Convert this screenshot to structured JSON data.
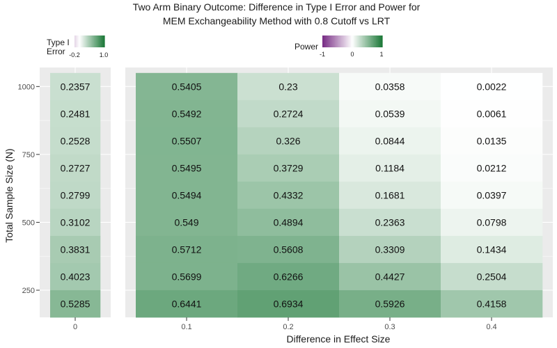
{
  "chart_data": {
    "type": "heatmap",
    "title_lines": [
      "Two Arm Binary Outcome: Difference in Type I Error and Power for",
      "MEM Exchangeability Method with 0.8 Cutoff vs LRT"
    ],
    "xlabel": "Difference in Effect Size",
    "ylabel": "Total Sample Size (N)",
    "y_ticks": [
      1000,
      750,
      500,
      250
    ],
    "y_range": [
      150,
      1070
    ],
    "n_values": [
      1000,
      900,
      800,
      700,
      600,
      500,
      400,
      300,
      200
    ],
    "type1_panel": {
      "x_tick": "0",
      "values": [
        0.2357,
        0.2481,
        0.2528,
        0.2727,
        0.2799,
        0.3102,
        0.3831,
        0.4023,
        0.5285
      ]
    },
    "power_panel": {
      "x_ticks": [
        "0.1",
        "0.2",
        "0.3",
        "0.4"
      ],
      "values": [
        [
          0.5405,
          0.23,
          0.0358,
          0.0022
        ],
        [
          0.5492,
          0.2724,
          0.0539,
          0.0061
        ],
        [
          0.5507,
          0.326,
          0.0844,
          0.0135
        ],
        [
          0.5495,
          0.3729,
          0.1184,
          0.0212
        ],
        [
          0.5494,
          0.4332,
          0.1681,
          0.0397
        ],
        [
          0.549,
          0.4894,
          0.2363,
          0.0798
        ],
        [
          0.5712,
          0.5608,
          0.3309,
          0.1434
        ],
        [
          0.5699,
          0.6266,
          0.4427,
          0.2504
        ],
        [
          0.6441,
          0.6934,
          0.5926,
          0.4158
        ]
      ]
    },
    "legend_type1": {
      "title_lines": [
        "Type I",
        "Error"
      ],
      "ticks": [
        "-0.2",
        "1.0"
      ],
      "range": [
        -0.2,
        1.0
      ]
    },
    "legend_power": {
      "title": "Power",
      "ticks": [
        "-1",
        "0",
        "1"
      ],
      "range": [
        -1,
        1
      ]
    },
    "colors": {
      "negative": "#762a83",
      "mid": "#ffffff",
      "positive": "#1b7837",
      "panel_bg": "#ebebeb",
      "grid": "#ffffff"
    }
  }
}
